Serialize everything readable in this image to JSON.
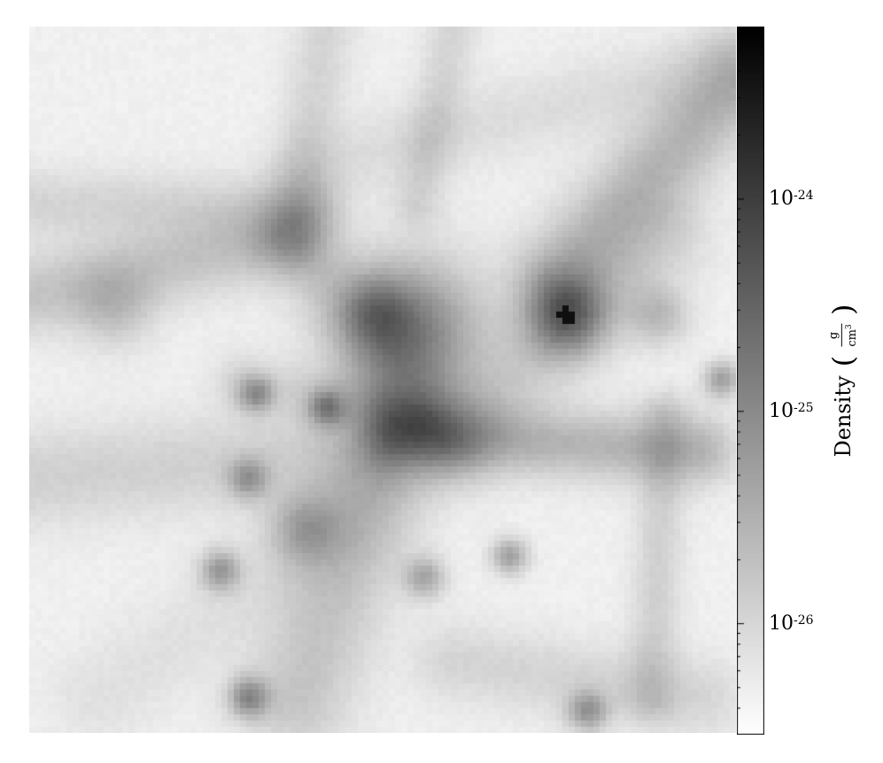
{
  "chart_data": {
    "type": "heatmap",
    "colormap": "gray_r",
    "colorbar": {
      "scale": "log",
      "range": [
        3e-27,
        6.5e-24
      ],
      "ticks": [
        {
          "value": 1e-24,
          "base": "10",
          "exponent": "-24"
        },
        {
          "value": 1e-25,
          "base": "10",
          "exponent": "-25"
        },
        {
          "value": 1e-26,
          "base": "10",
          "exponent": "-26"
        }
      ],
      "label": "Density",
      "unit_numerator": "g",
      "unit_denominator": "cm",
      "unit_exponent": "3"
    },
    "features": {
      "central_clump": [
        0.54,
        0.57
      ],
      "hot_spot": [
        0.76,
        0.59
      ]
    }
  }
}
